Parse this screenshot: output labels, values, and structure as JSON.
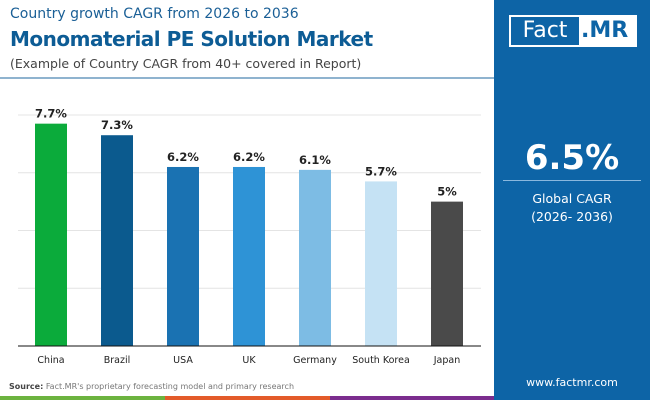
{
  "header": {
    "subtitle_top": "Country growth CAGR from 2026 to 2036",
    "title": "Monomaterial PE Solution Market",
    "note": "(Example of Country CAGR from 40+ covered in Report)"
  },
  "logo": {
    "part1": "Fact",
    "part2": ".MR"
  },
  "panel": {
    "value": "6.5%",
    "label1": "Global CAGR",
    "label2": "(2026- 2036)",
    "website": "www.factmr.com"
  },
  "footer": {
    "source_label": "Source:",
    "source_text": "Fact.MR's proprietary forecasting model and primary research"
  },
  "colors": {
    "brand": "#0d64a6",
    "bottom_bar": [
      "#6cb33f",
      "#e35b2a",
      "#7b2d8e"
    ]
  },
  "chart_data": {
    "type": "bar",
    "categories": [
      "China",
      "Brazil",
      "USA",
      "UK",
      "Germany",
      "South Korea",
      "Japan"
    ],
    "values": [
      7.7,
      7.3,
      6.2,
      6.2,
      6.1,
      5.7,
      5
    ],
    "labels": [
      "7.7%",
      "7.3%",
      "6.2%",
      "6.2%",
      "6.1%",
      "5.7%",
      "5%"
    ],
    "colors": [
      "#0bab3b",
      "#0b5a8e",
      "#1a72b2",
      "#2e93d6",
      "#7dbce4",
      "#c5e2f4",
      "#4a4a4a"
    ],
    "ylim": [
      0,
      8
    ],
    "grid": true,
    "unit": "%"
  }
}
